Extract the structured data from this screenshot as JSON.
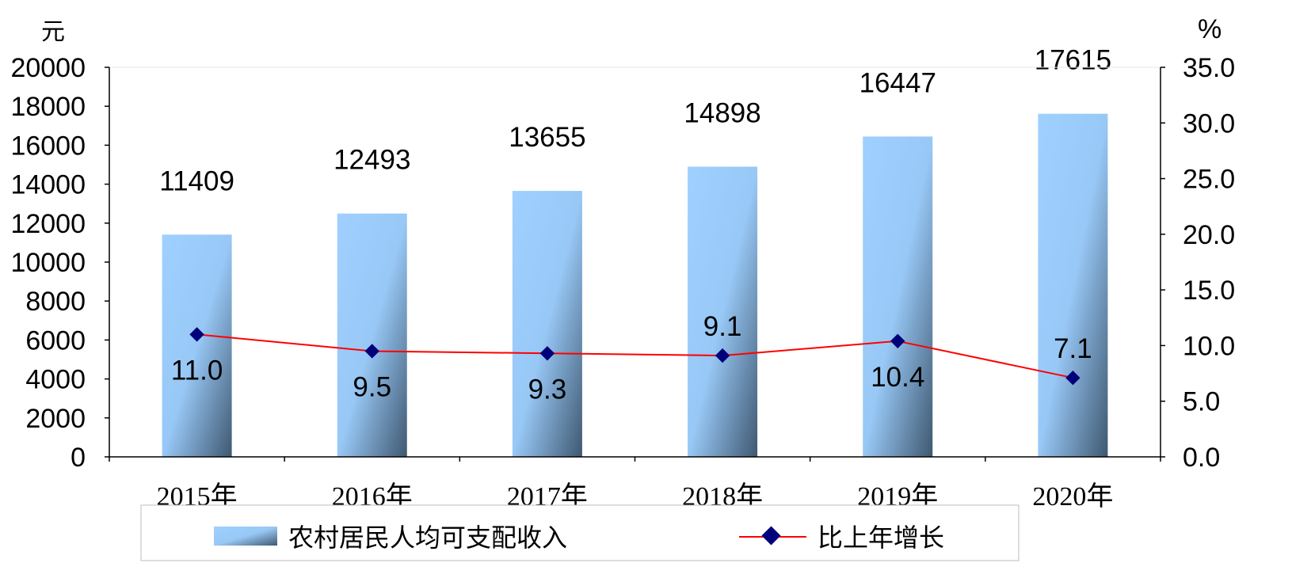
{
  "chart_data": {
    "type": "bar",
    "categories": [
      "2015年",
      "2016年",
      "2017年",
      "2018年",
      "2019年",
      "2020年"
    ],
    "left_unit": "元",
    "right_unit": "%",
    "left_ticks": [
      "0",
      "2000",
      "4000",
      "6000",
      "8000",
      "10000",
      "12000",
      "14000",
      "16000",
      "18000",
      "20000"
    ],
    "right_ticks": [
      "0.0",
      "5.0",
      "10.0",
      "15.0",
      "20.0",
      "25.0",
      "30.0",
      "35.0"
    ],
    "ylim_left": [
      0,
      20000
    ],
    "ylim_right": [
      0,
      35
    ],
    "series": [
      {
        "name": "农村居民人均可支配收入",
        "type": "bar",
        "axis": "left",
        "values": [
          11409,
          12493,
          13655,
          14898,
          16447,
          17615
        ],
        "labels": [
          "11409",
          "12493",
          "13655",
          "14898",
          "16447",
          "17615"
        ]
      },
      {
        "name": "比上年增长",
        "type": "line",
        "axis": "right",
        "values": [
          11.0,
          9.5,
          9.3,
          9.1,
          10.4,
          7.1
        ],
        "labels": [
          "11.0",
          "9.5",
          "9.3",
          "9.1",
          "10.4",
          "7.1"
        ]
      }
    ],
    "colors": {
      "bar_light": "#9fd0ff",
      "bar_dark": "#3f5870",
      "line": "#ff0000",
      "marker": "#00007a"
    },
    "grid": false,
    "legend_position": "bottom"
  }
}
